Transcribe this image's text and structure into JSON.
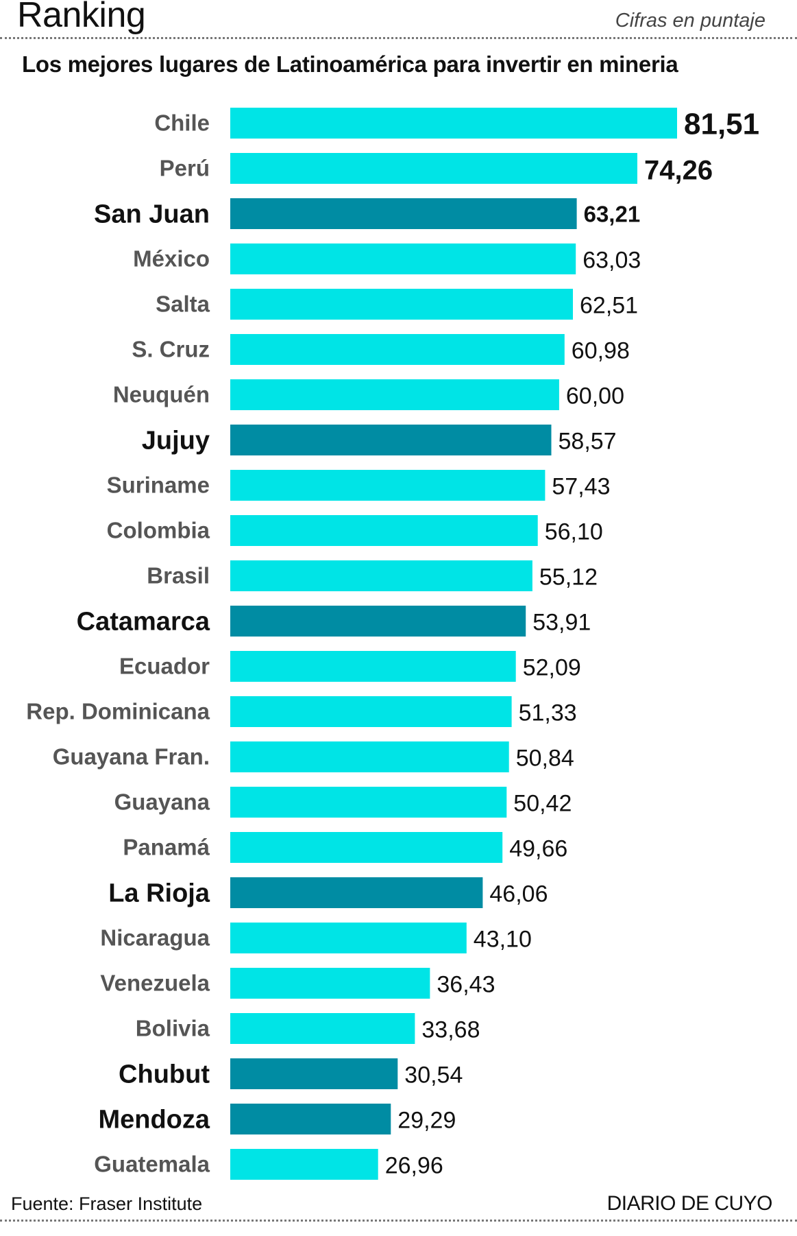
{
  "header": {
    "title": "Ranking",
    "units": "Cifras en puntaje",
    "subtitle": "Los mejores lugares de Latinoamérica para invertir en mineria"
  },
  "footer": {
    "source": "Fuente: Fraser Institute",
    "brand": "DIARIO DE CUYO"
  },
  "colors": {
    "country_bar": "#00e4e6",
    "province_bar": "#008ca3",
    "label": "#555555",
    "label_highlight": "#111111",
    "value": "#111111"
  },
  "chart_data": {
    "type": "bar",
    "orientation": "horizontal",
    "title": "Los mejores lugares de Latinoamérica para invertir en mineria",
    "xlabel": "",
    "ylabel": "",
    "xlim": [
      0,
      81.51
    ],
    "grid": false,
    "legend": "none",
    "categories": [
      "Chile",
      "Perú",
      "San Juan",
      "México",
      "Salta",
      "S. Cruz",
      "Neuquén",
      "Jujuy",
      "Suriname",
      "Colombia",
      "Brasil",
      "Catamarca",
      "Ecuador",
      "Rep. Dominicana",
      "Guayana Fran.",
      "Guayana",
      "Panamá",
      "La Rioja",
      "Nicaragua",
      "Venezuela",
      "Bolivia",
      "Chubut",
      "Mendoza",
      "Guatemala"
    ],
    "values": [
      81.51,
      74.26,
      63.21,
      63.03,
      62.51,
      60.98,
      60.0,
      58.57,
      57.43,
      56.1,
      55.12,
      53.91,
      52.09,
      51.33,
      50.84,
      50.42,
      49.66,
      46.06,
      43.1,
      36.43,
      33.68,
      30.54,
      29.29,
      26.96
    ],
    "value_labels": [
      "81,51",
      "74,26",
      "63,21",
      "63,03",
      "62,51",
      "60,98",
      "60,00",
      "58,57",
      "57,43",
      "56,10",
      "55,12",
      "53,91",
      "52,09",
      "51,33",
      "50,84",
      "50,42",
      "49,66",
      "46,06",
      "43,10",
      "36,43",
      "33,68",
      "30,54",
      "29,29",
      "26,96"
    ],
    "highlighted": [
      "San Juan",
      "Jujuy",
      "Catamarca",
      "La Rioja",
      "Chubut",
      "Mendoza"
    ],
    "emphasized_values": [
      "Chile",
      "Perú",
      "San Juan"
    ]
  }
}
